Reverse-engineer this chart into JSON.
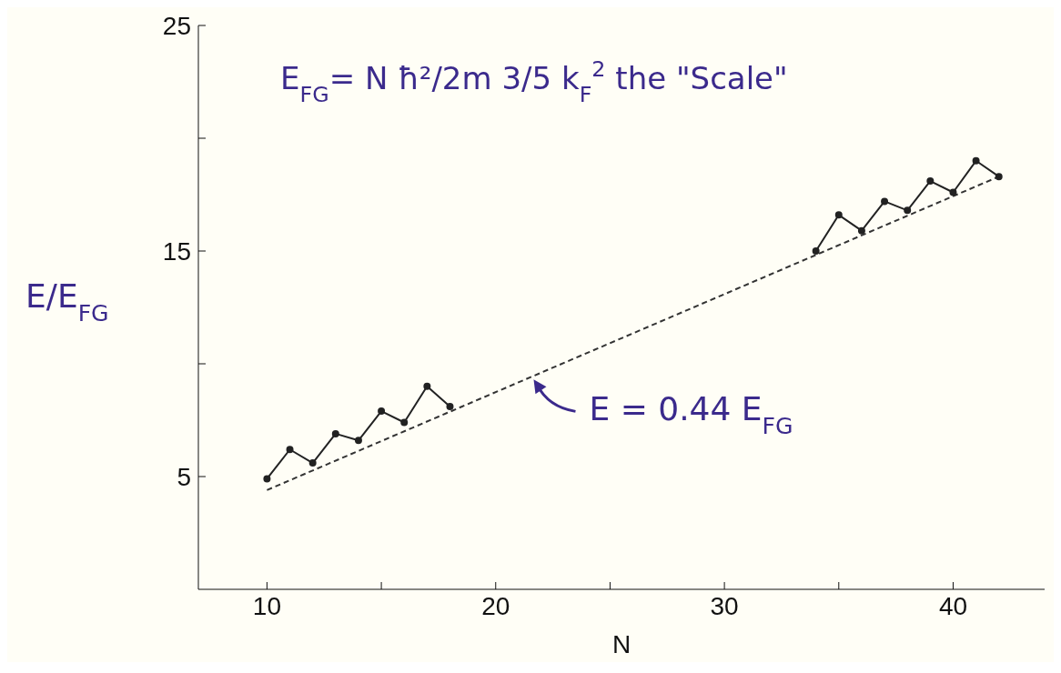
{
  "chart_data": {
    "type": "line",
    "xlabel": "N",
    "ylabel": "E/E$_{FG}$",
    "xlim": [
      7,
      44
    ],
    "xticks": [
      10,
      {
        "value": 15,
        "label": null
      },
      20,
      {
        "value": 25,
        "label": null
      },
      30,
      {
        "value": 35,
        "label": null
      },
      40
    ],
    "ylim": [
      0,
      25
    ],
    "yticks": [
      5,
      {
        "value": 10,
        "label": null
      },
      15,
      {
        "value": 20,
        "label": null
      },
      25
    ],
    "series": [
      {
        "color": "#222222",
        "marker": "circle",
        "line_style": "solid",
        "x": [
          10,
          11,
          12,
          13,
          14,
          15,
          16,
          17,
          18
        ],
        "values": [
          4.9,
          6.2,
          5.6,
          6.9,
          6.6,
          7.9,
          7.4,
          9.0,
          8.1
        ]
      },
      {
        "color": "#222222",
        "marker": "circle",
        "line_style": "solid",
        "x": [
          34,
          35,
          36,
          37,
          38,
          39,
          40,
          41,
          42
        ],
        "values": [
          15.0,
          16.6,
          15.9,
          17.2,
          16.8,
          18.1,
          17.6,
          19.0,
          18.3
        ]
      },
      {
        "color": "#333333",
        "marker": "none",
        "line_style": "dashed",
        "x": [
          10,
          42
        ],
        "values": [
          4.4,
          18.3
        ]
      }
    ],
    "annotations": [
      "E$_{FG}$= N ħ²/2m 3/5 k$_{F}$$^{2}$ the \"Scale\"",
      {
        "text": "E = 0.44 E$_{FG}$",
        "x": 21.5,
        "y": 9.3
      }
    ]
  }
}
